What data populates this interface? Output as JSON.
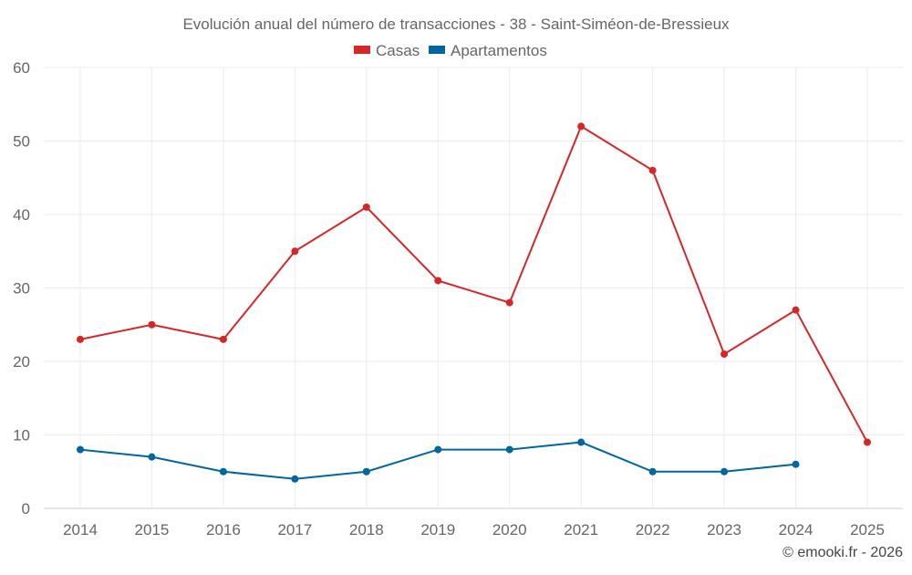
{
  "chart_data": {
    "type": "line",
    "title": "Evolución anual del número de transacciones - 38 - Saint-Siméon-de-Bressieux",
    "categories": [
      "2014",
      "2015",
      "2016",
      "2017",
      "2018",
      "2019",
      "2020",
      "2021",
      "2022",
      "2023",
      "2024",
      "2025"
    ],
    "series": [
      {
        "name": "Casas",
        "color": "#d62728",
        "values": [
          23,
          25,
          23,
          35,
          41,
          31,
          28,
          52,
          46,
          21,
          27,
          9
        ]
      },
      {
        "name": "Apartamentos",
        "color": "#0066a0",
        "values": [
          8,
          7,
          5,
          4,
          5,
          8,
          8,
          9,
          5,
          5,
          6,
          null
        ]
      }
    ],
    "ylim": [
      0,
      60
    ],
    "yticks": [
      0,
      10,
      20,
      30,
      40,
      50,
      60
    ],
    "grid": true,
    "legend": "top-center",
    "xlabel": "",
    "ylabel": ""
  },
  "credit": "© emooki.fr - 2026"
}
